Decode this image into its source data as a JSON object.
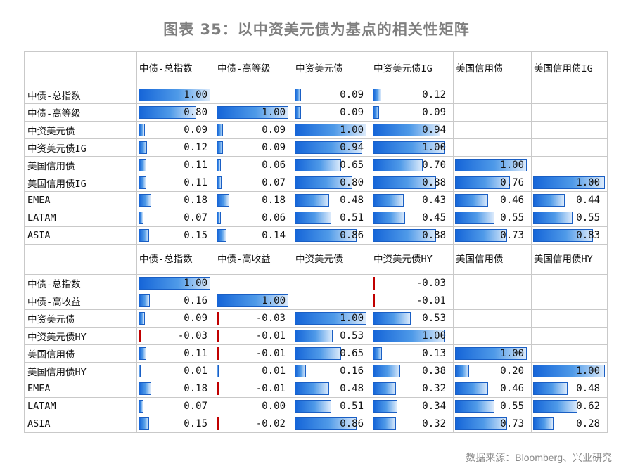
{
  "title": "图表 35：以中资美元债为基点的相关性矩阵",
  "source": "数据来源：Bloomberg、兴业研究",
  "colors": {
    "bar": "#1565d8",
    "negative": "#c00000",
    "grid": "#c9c9c9"
  },
  "chart_data": [
    {
      "type": "table",
      "columns": [
        "中债-总指数",
        "中债-高等级",
        "中资美元债",
        "中资美元债IG",
        "美国信用债",
        "美国信用债IG"
      ],
      "rows": [
        {
          "label": "中债-总指数",
          "values": [
            1.0,
            null,
            0.09,
            0.12,
            null,
            null
          ]
        },
        {
          "label": "中债-高等级",
          "values": [
            0.8,
            1.0,
            0.09,
            0.09,
            null,
            null
          ]
        },
        {
          "label": "中资美元债",
          "values": [
            0.09,
            0.09,
            1.0,
            0.94,
            null,
            null
          ]
        },
        {
          "label": "中资美元债IG",
          "values": [
            0.12,
            0.09,
            0.94,
            1.0,
            null,
            null
          ]
        },
        {
          "label": "美国信用债",
          "values": [
            0.11,
            0.06,
            0.65,
            0.7,
            1.0,
            null
          ]
        },
        {
          "label": "美国信用债IG",
          "values": [
            0.11,
            0.07,
            0.8,
            0.88,
            0.76,
            1.0
          ]
        },
        {
          "label": "EMEA",
          "values": [
            0.18,
            0.18,
            0.48,
            0.43,
            0.46,
            0.44
          ]
        },
        {
          "label": "LATAM",
          "values": [
            0.07,
            0.06,
            0.51,
            0.45,
            0.55,
            0.55
          ]
        },
        {
          "label": "ASIA",
          "values": [
            0.15,
            0.14,
            0.86,
            0.88,
            0.73,
            0.83
          ]
        }
      ]
    },
    {
      "type": "table",
      "columns": [
        "中债-总指数",
        "中债-高收益",
        "中资美元债",
        "中资美元债HY",
        "美国信用债",
        "美国信用债HY"
      ],
      "rows": [
        {
          "label": "中债-总指数",
          "values": [
            1.0,
            null,
            null,
            -0.03,
            null,
            null
          ]
        },
        {
          "label": "中债-高收益",
          "values": [
            0.16,
            1.0,
            null,
            -0.01,
            null,
            null
          ]
        },
        {
          "label": "中资美元债",
          "values": [
            0.09,
            -0.03,
            1.0,
            0.53,
            null,
            null
          ]
        },
        {
          "label": "中资美元债HY",
          "values": [
            -0.03,
            -0.01,
            0.53,
            1.0,
            null,
            null
          ]
        },
        {
          "label": "美国信用债",
          "values": [
            0.11,
            -0.01,
            0.65,
            0.13,
            1.0,
            null
          ]
        },
        {
          "label": "美国信用债HY",
          "values": [
            0.01,
            0.01,
            0.16,
            0.38,
            0.2,
            1.0
          ]
        },
        {
          "label": "EMEA",
          "values": [
            0.18,
            -0.01,
            0.48,
            0.32,
            0.46,
            0.48
          ]
        },
        {
          "label": "LATAM",
          "values": [
            0.07,
            0.0,
            0.51,
            0.34,
            0.55,
            0.62
          ]
        },
        {
          "label": "ASIA",
          "values": [
            0.15,
            -0.02,
            0.86,
            0.32,
            0.73,
            0.28
          ]
        }
      ]
    }
  ]
}
